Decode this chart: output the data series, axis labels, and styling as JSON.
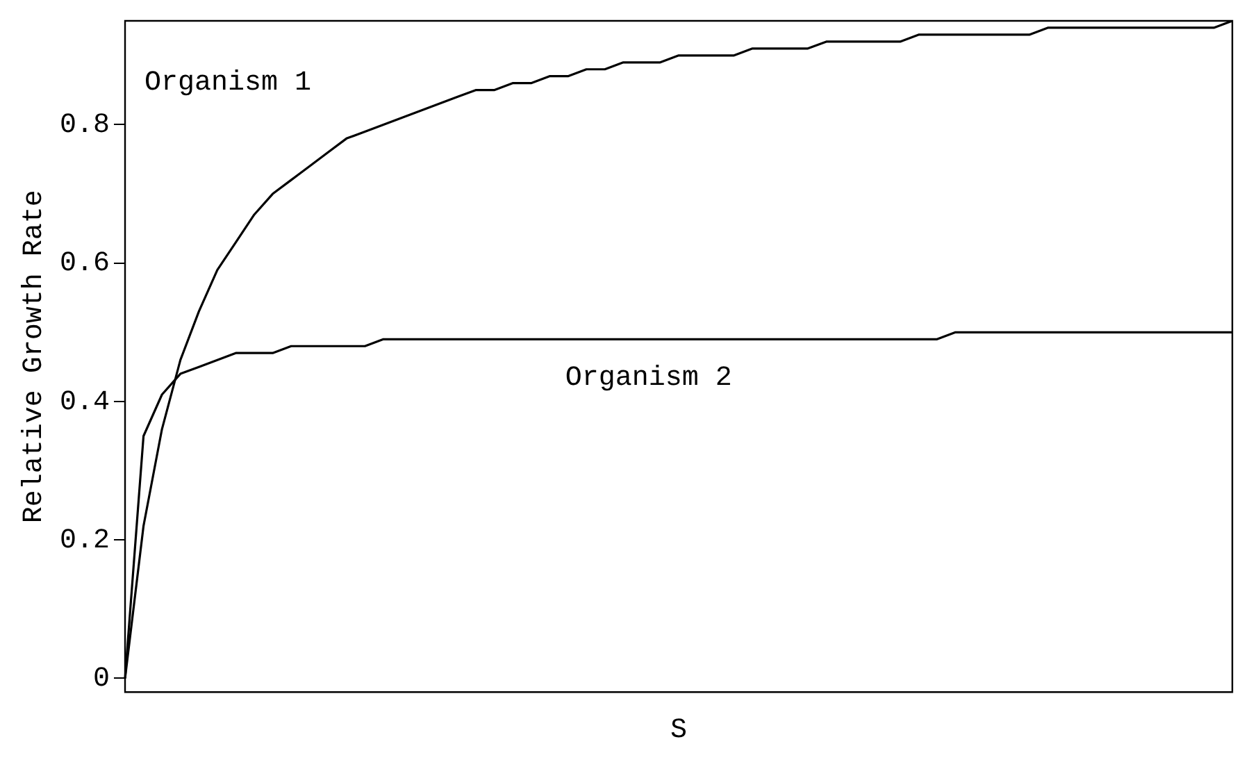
{
  "chart_data": {
    "type": "line",
    "xlabel": "S",
    "ylabel": "Relative Growth Rate",
    "categories": [
      null,
      null,
      null,
      null,
      null,
      null,
      null,
      null,
      null,
      null,
      null,
      null,
      null,
      null,
      null,
      null,
      null,
      null,
      null,
      null,
      null,
      null,
      null,
      null,
      null,
      null,
      null,
      null,
      null,
      null,
      null,
      null,
      null,
      null,
      null,
      null,
      null,
      null,
      null,
      null,
      null,
      null,
      null,
      null,
      null,
      null,
      null,
      null,
      null,
      null,
      null,
      null,
      null,
      null,
      null,
      null,
      null,
      null,
      null,
      null,
      null
    ],
    "series": [
      {
        "name": "Organism 1",
        "color": "#000000",
        "values": [
          0,
          0.22,
          0.36,
          0.46,
          0.53,
          0.59,
          0.63,
          0.67,
          0.7,
          0.72,
          0.74,
          0.76,
          0.78,
          0.79,
          0.8,
          0.81,
          0.82,
          0.83,
          0.84,
          0.85,
          0.85,
          0.86,
          0.86,
          0.87,
          0.87,
          0.88,
          0.88,
          0.89,
          0.89,
          0.89,
          0.9,
          0.9,
          0.9,
          0.9,
          0.91,
          0.91,
          0.91,
          0.91,
          0.92,
          0.92,
          0.92,
          0.92,
          0.92,
          0.93,
          0.93,
          0.93,
          0.93,
          0.93,
          0.93,
          0.93,
          0.94,
          0.94,
          0.94,
          0.94,
          0.94,
          0.94,
          0.94,
          0.94,
          0.94,
          0.94,
          0.95
        ]
      },
      {
        "name": "Organism 2",
        "color": "#000000",
        "values": [
          0,
          0.35,
          0.41,
          0.44,
          0.45,
          0.46,
          0.47,
          0.47,
          0.47,
          0.48,
          0.48,
          0.48,
          0.48,
          0.48,
          0.49,
          0.49,
          0.49,
          0.49,
          0.49,
          0.49,
          0.49,
          0.49,
          0.49,
          0.49,
          0.49,
          0.49,
          0.49,
          0.49,
          0.49,
          0.49,
          0.49,
          0.49,
          0.49,
          0.49,
          0.49,
          0.49,
          0.49,
          0.49,
          0.49,
          0.49,
          0.49,
          0.49,
          0.49,
          0.49,
          0.49,
          0.5,
          0.5,
          0.5,
          0.5,
          0.5,
          0.5,
          0.5,
          0.5,
          0.5,
          0.5,
          0.5,
          0.5,
          0.5,
          0.5,
          0.5,
          0.5
        ]
      }
    ],
    "ylim": [
      -0.02,
      0.95
    ],
    "yticks": [
      0,
      0.2,
      0.4,
      0.6,
      0.8
    ],
    "grid": false,
    "legend": false,
    "marker": "none",
    "line_style": "solid"
  }
}
